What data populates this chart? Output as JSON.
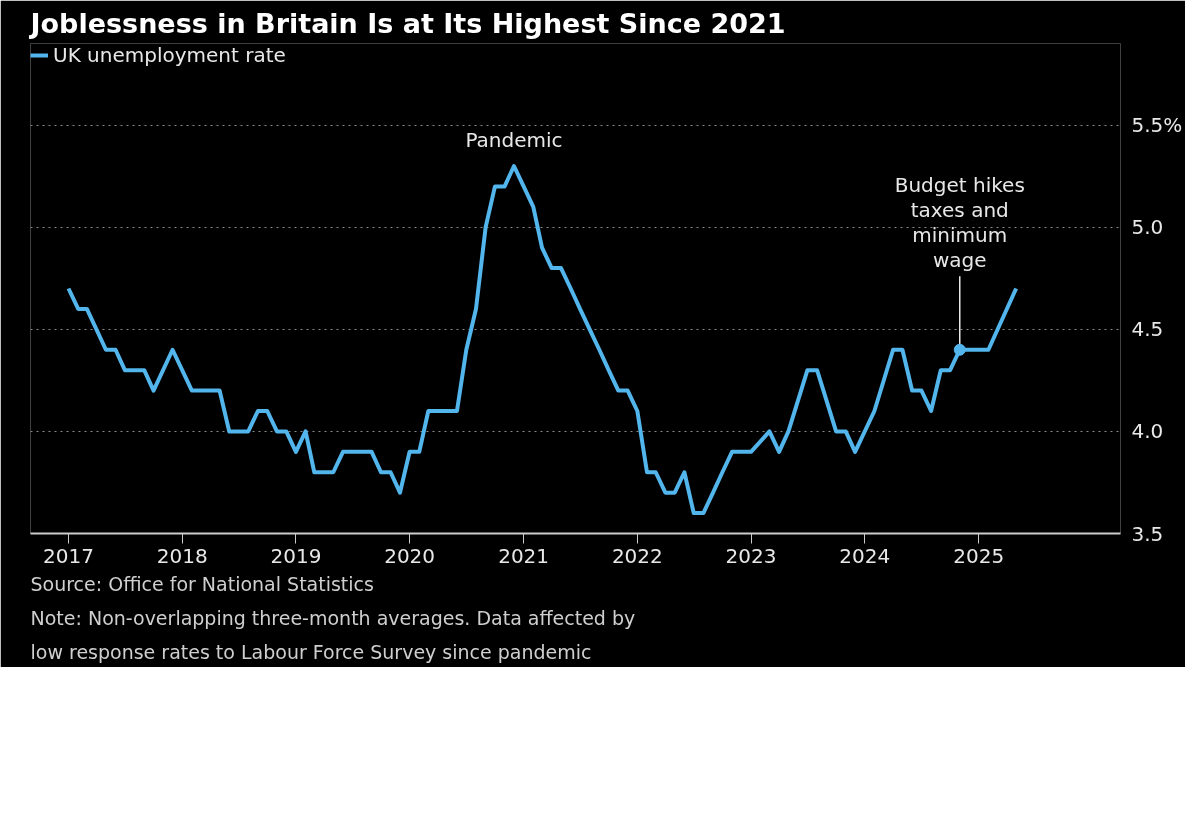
{
  "chart_data": {
    "type": "line",
    "title": "Joblessness in Britain Is at Its Highest Since 2021",
    "x": [
      "2017-01",
      "2017-02",
      "2017-03",
      "2017-05",
      "2017-06",
      "2017-07",
      "2017-09",
      "2017-10",
      "2017-12",
      "2018-02",
      "2018-05",
      "2018-06",
      "2018-08",
      "2018-09",
      "2018-10",
      "2018-11",
      "2018-12",
      "2019-01",
      "2019-02",
      "2019-03",
      "2019-05",
      "2019-06",
      "2019-09",
      "2019-10",
      "2019-11",
      "2019-12",
      "2020-01",
      "2020-02",
      "2020-03",
      "2020-06",
      "2020-07",
      "2020-08",
      "2020-09",
      "2020-10",
      "2020-11",
      "2020-12",
      "2021-01",
      "2021-02",
      "2021-03",
      "2021-04",
      "2021-05",
      "2021-06",
      "2021-07",
      "2021-08",
      "2021-09",
      "2021-10",
      "2021-11",
      "2021-12",
      "2022-01",
      "2022-02",
      "2022-03",
      "2022-04",
      "2022-05",
      "2022-06",
      "2022-07",
      "2022-08",
      "2022-09",
      "2022-10",
      "2022-11",
      "2022-12",
      "2023-01",
      "2023-03",
      "2023-04",
      "2023-05",
      "2023-07",
      "2023-08",
      "2023-10",
      "2023-11",
      "2023-12",
      "2024-02",
      "2024-04",
      "2024-05",
      "2024-06",
      "2024-07",
      "2024-08",
      "2024-09",
      "2024-10",
      "2024-11",
      "2024-12",
      "2025-02",
      "2025-05"
    ],
    "series": [
      {
        "name": "UK unemployment rate",
        "color": "#52b5ec",
        "values": [
          4.7,
          4.6,
          4.6,
          4.4,
          4.4,
          4.3,
          4.3,
          4.2,
          4.4,
          4.2,
          4.2,
          4.0,
          4.0,
          4.1,
          4.1,
          4.0,
          4.0,
          3.9,
          4.0,
          3.8,
          3.8,
          3.9,
          3.9,
          3.8,
          3.8,
          3.7,
          3.9,
          3.9,
          4.1,
          4.1,
          4.4,
          4.6,
          5.0,
          5.2,
          5.2,
          5.3,
          5.2,
          5.1,
          4.9,
          4.8,
          4.8,
          4.7,
          4.6,
          4.5,
          4.4,
          4.3,
          4.2,
          4.2,
          4.1,
          3.8,
          3.8,
          3.7,
          3.7,
          3.8,
          3.6,
          3.6,
          3.7,
          3.8,
          3.9,
          3.9,
          3.9,
          4.0,
          3.9,
          4.0,
          4.3,
          4.3,
          4.0,
          4.0,
          3.9,
          4.1,
          4.4,
          4.4,
          4.2,
          4.2,
          4.1,
          4.3,
          4.3,
          4.4,
          4.4,
          4.4,
          4.7
        ]
      }
    ],
    "xlim": [
      "2016-09",
      "2026-04"
    ],
    "xticks": [
      "2017",
      "2018",
      "2019",
      "2020",
      "2021",
      "2022",
      "2023",
      "2024",
      "2025"
    ],
    "ylim": [
      3.5,
      5.9
    ],
    "yticks": [
      3.5,
      {
        "value": 4,
        "label": "4.0"
      },
      4.5,
      {
        "value": 5,
        "label": "5.0"
      },
      {
        "value": 5.5,
        "label": "5.5%"
      }
    ],
    "grid": "y",
    "legend": "top left",
    "marker": "none",
    "line_style": "solid",
    "annotations": [
      {
        "text": "Pandemic",
        "x": "2020-12",
        "y": 5.3
      },
      {
        "text": "Budget hikes\ntaxes and\nminimum\nwage",
        "x": "2024-11",
        "y": 4.4
      },
      "Source: Office for National Statistics",
      "Note: Non-overlapping three-month averages. Data affected by\nlow response rates to Labour Force Survey since pandemic"
    ]
  }
}
